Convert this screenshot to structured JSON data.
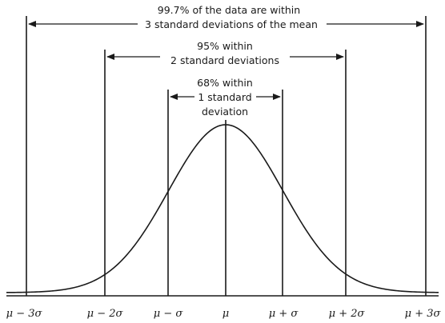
{
  "annotations": {
    "sigma3_line1": "99.7% of the data are within",
    "sigma3_line2": "3 standard deviations of the mean",
    "sigma2_line1": "95% within",
    "sigma2_line2": "2 standard deviations",
    "sigma1_line1": "68% within",
    "sigma1_line2": "1 standard",
    "sigma1_line3": "deviation"
  },
  "axis_labels": [
    "μ − 3σ",
    "μ − 2σ",
    "μ − σ",
    "μ",
    "μ + σ",
    "μ + 2σ",
    "μ + 3σ"
  ]
}
